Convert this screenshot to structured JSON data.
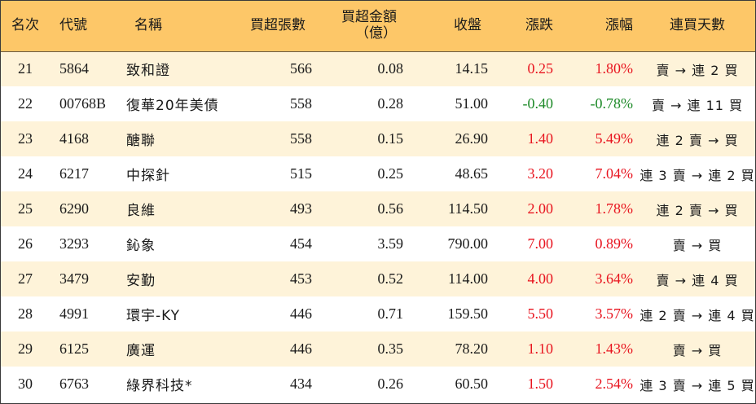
{
  "colors": {
    "header_bg": "#fdc768",
    "alt_row_bg": "#fef3d9",
    "up": "#e8141f",
    "down": "#1d8a28"
  },
  "headers": {
    "rank": "名次",
    "code": "代號",
    "name": "名稱",
    "net_buy_lots": "買超張數",
    "net_buy_amount_line1": "買超金額",
    "net_buy_amount_line2": "（億）",
    "close": "收盤",
    "change": "漲跌",
    "change_pct": "漲幅",
    "consecutive": "連買天數"
  },
  "rows": [
    {
      "rank": "21",
      "code": "5864",
      "name": "致和證",
      "lots": "566",
      "amount": "0.08",
      "close": "14.15",
      "change": "0.25",
      "pct": "1.80%",
      "trend": "賣 → 連 2 買",
      "dir": "up"
    },
    {
      "rank": "22",
      "code": "00768B",
      "name": "復華20年美債",
      "lots": "558",
      "amount": "0.28",
      "close": "51.00",
      "change": "-0.40",
      "pct": "-0.78%",
      "trend": "賣 → 連 11 買",
      "dir": "down"
    },
    {
      "rank": "23",
      "code": "4168",
      "name": "醣聯",
      "lots": "558",
      "amount": "0.15",
      "close": "26.90",
      "change": "1.40",
      "pct": "5.49%",
      "trend": "連 2 賣 → 買",
      "dir": "up"
    },
    {
      "rank": "24",
      "code": "6217",
      "name": "中探針",
      "lots": "515",
      "amount": "0.25",
      "close": "48.65",
      "change": "3.20",
      "pct": "7.04%",
      "trend": "連 3 賣 → 連 2 買",
      "dir": "up"
    },
    {
      "rank": "25",
      "code": "6290",
      "name": "良維",
      "lots": "493",
      "amount": "0.56",
      "close": "114.50",
      "change": "2.00",
      "pct": "1.78%",
      "trend": "連 2 賣 → 買",
      "dir": "up"
    },
    {
      "rank": "26",
      "code": "3293",
      "name": "鈊象",
      "lots": "454",
      "amount": "3.59",
      "close": "790.00",
      "change": "7.00",
      "pct": "0.89%",
      "trend": "賣 → 買",
      "dir": "up"
    },
    {
      "rank": "27",
      "code": "3479",
      "name": "安勤",
      "lots": "453",
      "amount": "0.52",
      "close": "114.00",
      "change": "4.00",
      "pct": "3.64%",
      "trend": "賣 → 連 4 買",
      "dir": "up"
    },
    {
      "rank": "28",
      "code": "4991",
      "name": "環宇-KY",
      "lots": "446",
      "amount": "0.71",
      "close": "159.50",
      "change": "5.50",
      "pct": "3.57%",
      "trend": "連 2 賣 → 連 4 買",
      "dir": "up"
    },
    {
      "rank": "29",
      "code": "6125",
      "name": "廣運",
      "lots": "446",
      "amount": "0.35",
      "close": "78.20",
      "change": "1.10",
      "pct": "1.43%",
      "trend": "賣 → 買",
      "dir": "up"
    },
    {
      "rank": "30",
      "code": "6763",
      "name": "綠界科技*",
      "lots": "434",
      "amount": "0.26",
      "close": "60.50",
      "change": "1.50",
      "pct": "2.54%",
      "trend": "連 3 賣 → 連 5 買",
      "dir": "up"
    }
  ]
}
